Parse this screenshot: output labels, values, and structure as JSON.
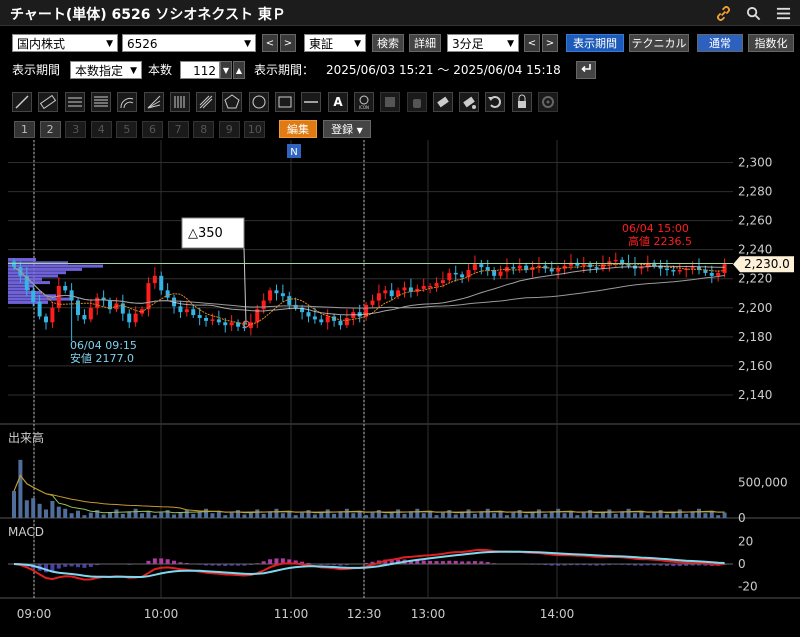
{
  "window": {
    "title": "チャート(単体) 6526 ソシオネクスト 東Ｐ",
    "icons": [
      "link-icon",
      "search-icon",
      "menu-icon"
    ]
  },
  "controls": {
    "market_select": "国内株式",
    "code_input": "6526",
    "exchange_select": "東証",
    "search_button": "検索",
    "detail_button": "詳細",
    "interval_select": "3分足",
    "display_period_button": "表示期間",
    "technical_button": "テクニカル",
    "normal_button": "通常",
    "index_button": "指数化",
    "period_label": "表示期間",
    "count_mode_select": "本数指定",
    "count_label": "本数",
    "count_value": "112",
    "range_label": "表示期間：",
    "range_value": "2025/06/03 15:21 ～ 2025/06/04 15:18",
    "edit_button": "編集",
    "register_button": "登録"
  },
  "drawing_tools": [
    "trendline-icon",
    "ruler-icon",
    "horizontal-lines-icon",
    "grid-lines-icon",
    "arc-icon",
    "fan-icon",
    "vertical-lines-icon",
    "pitchfork-icon",
    "pentagon-icon",
    "circle-icon",
    "rectangle-icon",
    "horizontal-line-icon",
    "text-icon",
    "icon-stamp-icon",
    "copy-icon",
    "hand-icon",
    "eraser-icon",
    "eraser-all-icon",
    "undo-icon",
    "lock-icon",
    "settings-icon"
  ],
  "text_tool_label": "A",
  "icon_tool_label": "ICON",
  "presets": [
    "1",
    "2",
    "3",
    "4",
    "5",
    "6",
    "7",
    "8",
    "9",
    "10"
  ],
  "colors": {
    "up": "#ff1e1e",
    "down": "#35b5e5",
    "grid": "#2f2f2f",
    "bg": "#000000",
    "last_price_box": "#fff0d8",
    "volume": "#4f6f9a"
  },
  "chart_data": {
    "type": "candlestick",
    "price_axis": {
      "ticks": [
        "2,300",
        "2,280",
        "2,260",
        "2,240",
        "2,220",
        "2,200",
        "2,180",
        "2,160",
        "2,140"
      ],
      "ylim": [
        2120,
        2310
      ]
    },
    "time_axis": {
      "ticks": [
        "09:00",
        "10:00",
        "11:00",
        "12:30",
        "13:00",
        "14:00"
      ]
    },
    "last_price": "2,230.0",
    "high_annotation": {
      "date": "06/04 15:00",
      "label": "高値",
      "value": "2236.5"
    },
    "low_annotation": {
      "date": "06/04 09:15",
      "label": "安値",
      "value": "2177.0"
    },
    "measure_label": "△350",
    "news_marker": "N",
    "closes": [
      2228,
      2222,
      2212,
      2204,
      2194,
      2190,
      2200,
      2215,
      2212,
      2205,
      2195,
      2192,
      2200,
      2207,
      2205,
      2199,
      2203,
      2196,
      2190,
      2196,
      2199,
      2217,
      2222,
      2212,
      2207,
      2201,
      2197,
      2199,
      2195,
      2193,
      2191,
      2192,
      2190,
      2188,
      2190,
      2187,
      2186,
      2190,
      2199,
      2205,
      2212,
      2210,
      2208,
      2202,
      2200,
      2197,
      2194,
      2192,
      2190,
      2194,
      2191,
      2188,
      2193,
      2197,
      2194,
      2202,
      2205,
      2210,
      2212,
      2208,
      2212,
      2214,
      2211,
      2213,
      2215,
      2215,
      2217,
      2219,
      2224,
      2223,
      2221,
      2226,
      2230,
      2228,
      2226,
      2222,
      2225,
      2228,
      2227,
      2229,
      2226,
      2228,
      2229,
      2227,
      2225,
      2227,
      2229,
      2231,
      2229,
      2230,
      2228,
      2227,
      2230,
      2232,
      2233,
      2230,
      2229,
      2227,
      2228,
      2231,
      2229,
      2227,
      2226,
      2225,
      2226,
      2227,
      2228,
      2226,
      2224,
      2222,
      2224,
      2230
    ],
    "volume_axis": {
      "ticks": [
        "500,000",
        "0"
      ],
      "ylim": [
        0,
        1100000
      ]
    },
    "volume_label": "出来高",
    "macd_label": "MACD",
    "macd_axis": {
      "ticks": [
        "20",
        "0",
        "-20"
      ],
      "ylim": [
        -25,
        25
      ]
    }
  }
}
